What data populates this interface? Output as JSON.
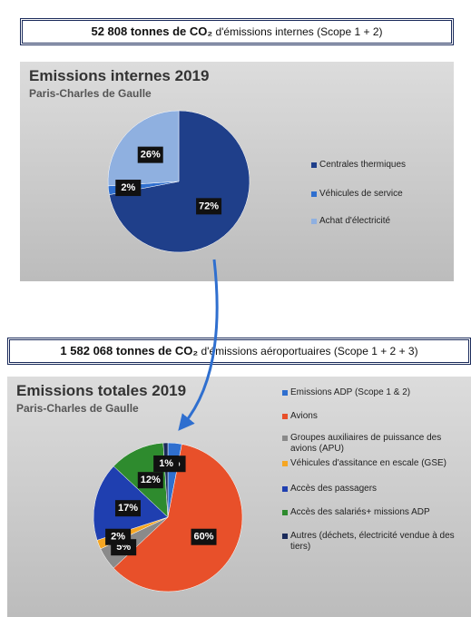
{
  "banners": [
    {
      "bold": "52 808 tonnes de CO₂",
      "text": " d'émissions internes (Scope 1 + 2)"
    },
    {
      "bold": "1 582 068 tonnes de CO₂",
      "text": " d'émissions aéroportuaires (Scope 1 + 2 + 3)"
    }
  ],
  "chart_data": [
    {
      "type": "pie",
      "title": "Emissions internes 2019",
      "subtitle": "Paris-Charles de Gaulle",
      "categories": [
        "Centrales thermiques",
        "Véhicules de service",
        "Achat d'électricité"
      ],
      "values": [
        72,
        2,
        26
      ],
      "value_labels": [
        "72%",
        "2%",
        "26%"
      ],
      "colors": [
        "#1f3f8a",
        "#2f6fcf",
        "#8fb0e0"
      ]
    },
    {
      "type": "pie",
      "title": "Emissions totales 2019",
      "subtitle": "Paris-Charles de Gaulle",
      "categories": [
        "Emissions ADP (Scope 1 & 2)",
        "Avions",
        "Groupes auxiliaires de puissance des avions (APU)",
        "Véhicules d'assitance en escale (GSE)",
        "Accès des passagers",
        "Accès des salariés+ missions ADP",
        "Autres (déchets, électricité vendue à des tiers)"
      ],
      "values": [
        3,
        60,
        5,
        2,
        17,
        12,
        1
      ],
      "value_labels": [
        "3%",
        "60%",
        "5%",
        "2%",
        "17%",
        "12%",
        "1%"
      ],
      "colors": [
        "#2f6fcf",
        "#e8502a",
        "#8a8a8a",
        "#f5a623",
        "#1f3fb0",
        "#2e8b2e",
        "#1a2a5a"
      ]
    }
  ]
}
